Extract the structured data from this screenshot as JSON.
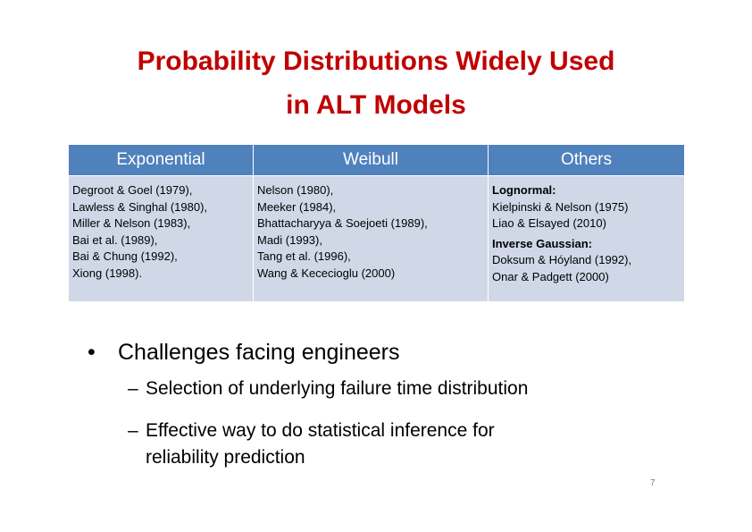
{
  "title": {
    "lines": [
      "Probability Distributions Widely Used",
      "in ALT Models"
    ]
  },
  "table": {
    "headers": [
      "Exponential",
      "Weibull",
      "Others"
    ],
    "exponential": [
      "Degroot & Goel (1979),",
      "Lawless & Singhal (1980),",
      "Miller & Nelson (1983),",
      "Bai et al. (1989),",
      "Bai & Chung (1992),",
      "Xiong (1998)."
    ],
    "weibull": [
      "Nelson (1980),",
      "Meeker (1984),",
      "Bhattacharyya & Soejoeti (1989),",
      "Madi (1993),",
      "Tang et al. (1996),",
      "Wang & Kececioglu (2000)"
    ],
    "others": [
      {
        "heading": "Lognormal:",
        "items": [
          "Kielpinski & Nelson (1975)",
          "Liao & Elsayed (2010)"
        ]
      },
      {
        "heading": "Inverse Gaussian:",
        "items": [
          "Doksum & Hóyland (1992),",
          "Onar & Padgett (2000)"
        ]
      }
    ]
  },
  "bullets": {
    "main": "Challenges facing engineers",
    "sub": [
      [
        "Selection of underlying failure time distribution"
      ],
      [
        "Effective way to do statistical inference for",
        "reliability prediction"
      ]
    ]
  },
  "page_number": "7"
}
